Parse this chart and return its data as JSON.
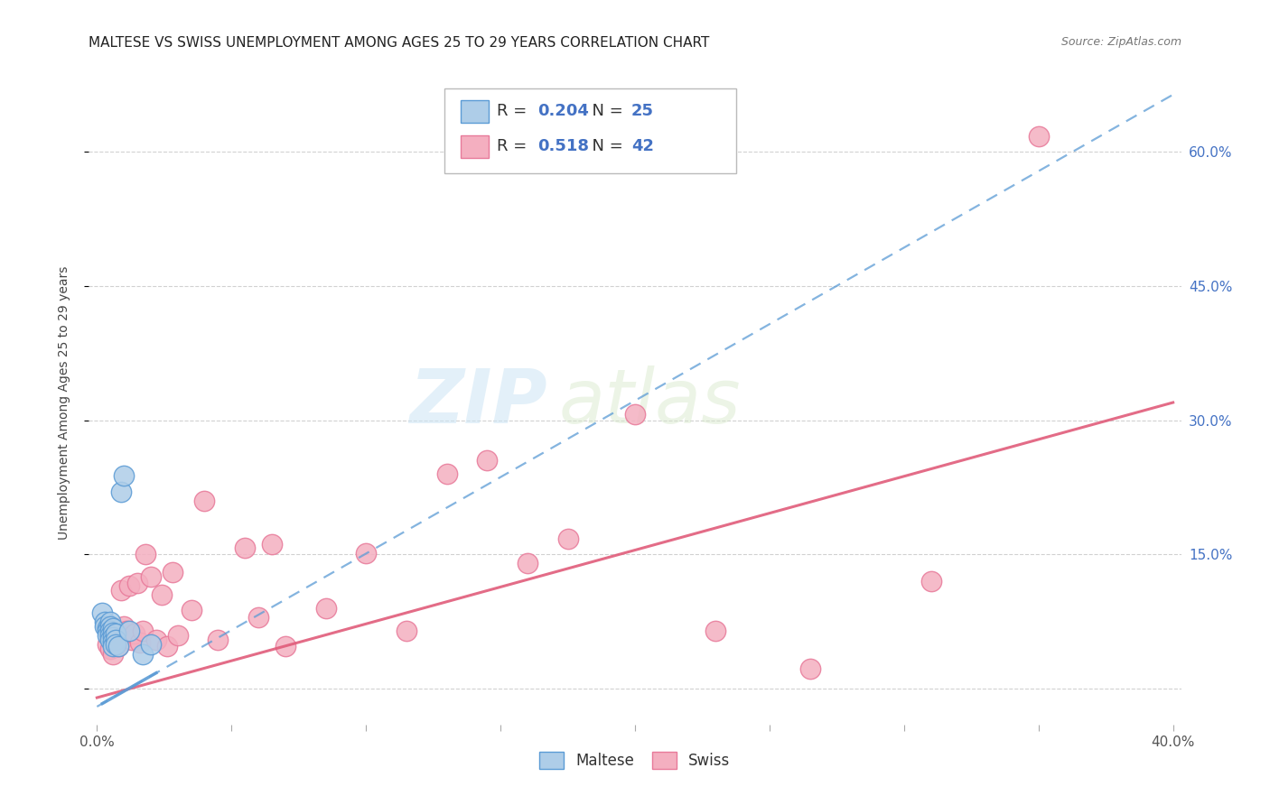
{
  "title": "MALTESE VS SWISS UNEMPLOYMENT AMONG AGES 25 TO 29 YEARS CORRELATION CHART",
  "source": "Source: ZipAtlas.com",
  "ylabel": "Unemployment Among Ages 25 to 29 years",
  "xlim": [
    -0.003,
    0.403
  ],
  "ylim": [
    -0.04,
    0.68
  ],
  "xticks": [
    0.0,
    0.05,
    0.1,
    0.15,
    0.2,
    0.25,
    0.3,
    0.35,
    0.4
  ],
  "ytick_positions": [
    0.0,
    0.15,
    0.3,
    0.45,
    0.6
  ],
  "ytick_labels": [
    "",
    "15.0%",
    "30.0%",
    "45.0%",
    "60.0%"
  ],
  "grid_color": "#cccccc",
  "background_color": "#ffffff",
  "maltese_color": "#aecde8",
  "swiss_color": "#f4afc0",
  "maltese_edge": "#5b9bd5",
  "swiss_edge": "#e87a9a",
  "trend_maltese_color": "#5b9bd5",
  "trend_swiss_color": "#e05c7a",
  "R_maltese": 0.204,
  "N_maltese": 25,
  "R_swiss": 0.518,
  "N_swiss": 42,
  "legend_label_maltese": "Maltese",
  "legend_label_swiss": "Swiss",
  "watermark_zip": "ZIP",
  "watermark_atlas": "atlas",
  "maltese_x": [
    0.002,
    0.003,
    0.003,
    0.004,
    0.004,
    0.004,
    0.005,
    0.005,
    0.005,
    0.005,
    0.005,
    0.006,
    0.006,
    0.006,
    0.006,
    0.006,
    0.007,
    0.007,
    0.007,
    0.008,
    0.009,
    0.01,
    0.012,
    0.017,
    0.02
  ],
  "maltese_y": [
    0.085,
    0.075,
    0.07,
    0.068,
    0.065,
    0.06,
    0.075,
    0.07,
    0.065,
    0.06,
    0.055,
    0.068,
    0.063,
    0.058,
    0.053,
    0.048,
    0.062,
    0.055,
    0.05,
    0.048,
    0.22,
    0.238,
    0.065,
    0.038,
    0.05
  ],
  "swiss_x": [
    0.004,
    0.005,
    0.006,
    0.007,
    0.008,
    0.008,
    0.009,
    0.01,
    0.01,
    0.011,
    0.012,
    0.013,
    0.014,
    0.015,
    0.016,
    0.017,
    0.018,
    0.02,
    0.022,
    0.024,
    0.026,
    0.028,
    0.03,
    0.035,
    0.04,
    0.045,
    0.055,
    0.06,
    0.065,
    0.07,
    0.085,
    0.1,
    0.115,
    0.13,
    0.145,
    0.16,
    0.175,
    0.2,
    0.23,
    0.265,
    0.31,
    0.35
  ],
  "swiss_y": [
    0.05,
    0.045,
    0.038,
    0.055,
    0.052,
    0.048,
    0.11,
    0.07,
    0.058,
    0.065,
    0.115,
    0.055,
    0.062,
    0.118,
    0.052,
    0.065,
    0.15,
    0.125,
    0.055,
    0.105,
    0.048,
    0.13,
    0.06,
    0.088,
    0.21,
    0.055,
    0.158,
    0.08,
    0.162,
    0.048,
    0.09,
    0.152,
    0.065,
    0.24,
    0.255,
    0.14,
    0.168,
    0.307,
    0.065,
    0.022,
    0.12,
    0.618
  ]
}
